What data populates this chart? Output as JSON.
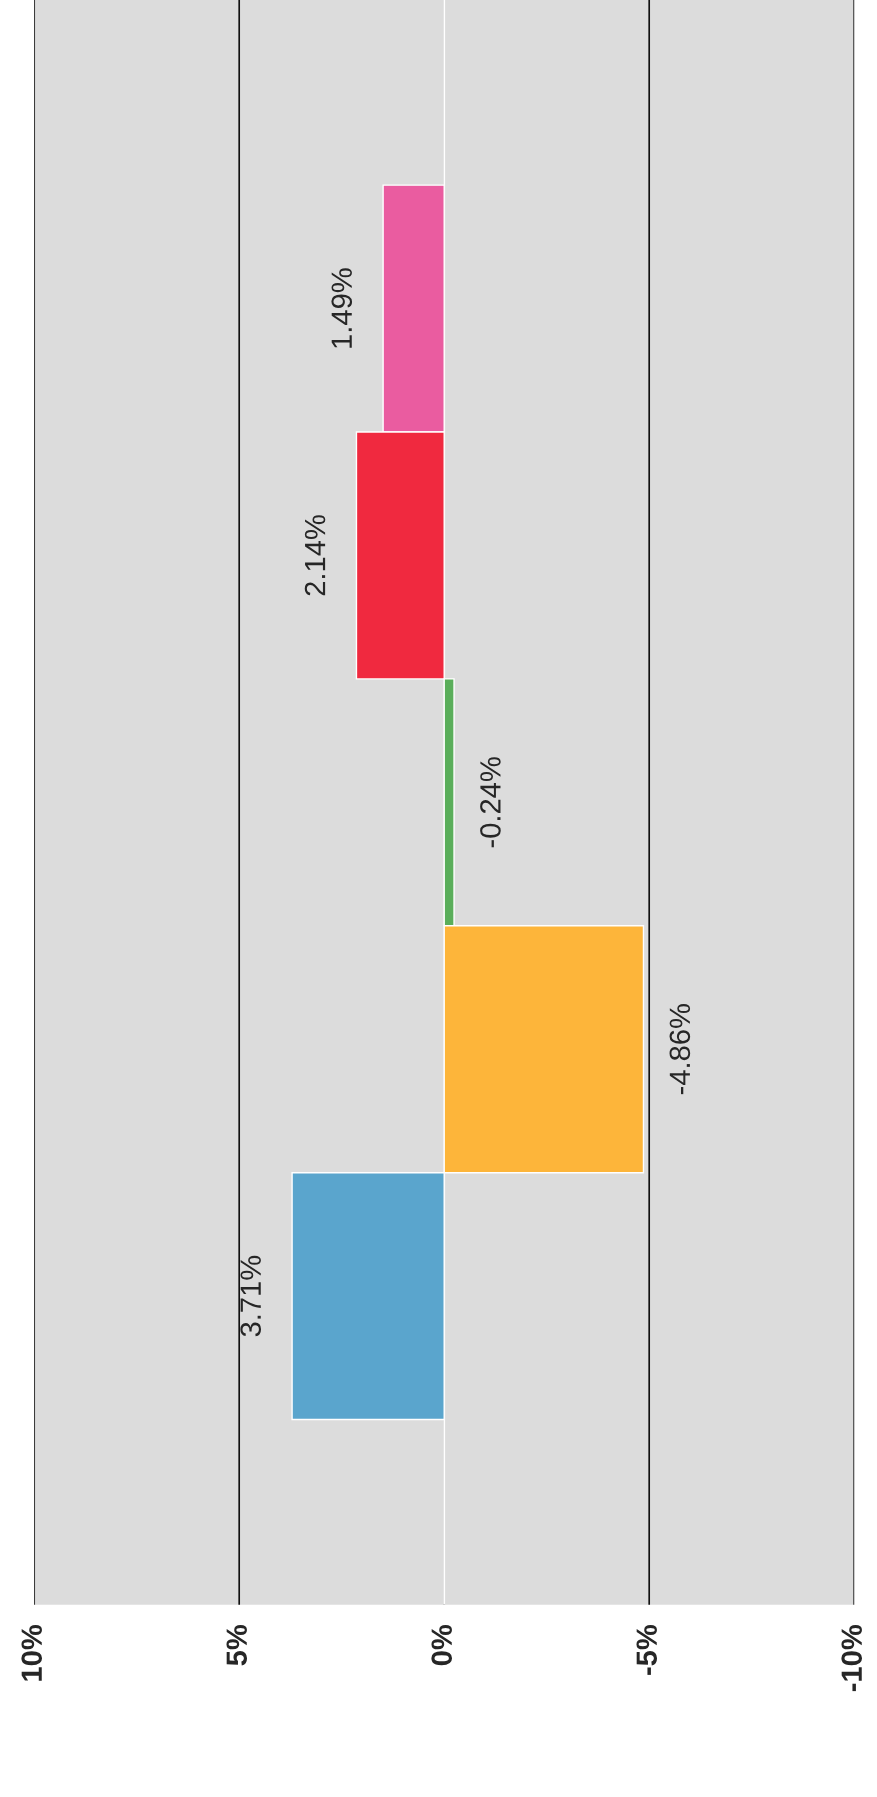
{
  "chart_data": {
    "type": "bar",
    "orientation": "horizontal",
    "categories": [
      null,
      null,
      null,
      null,
      null
    ],
    "values": [
      1.49,
      2.14,
      -0.24,
      -4.86,
      3.71
    ],
    "colors": [
      "#ea5ca0",
      "#f0293f",
      "#5aae5a",
      "#fdb53a",
      "#5aa5cd"
    ],
    "value_labels": [
      "1.49%",
      "2.14%",
      "-0.24%",
      "-4.86%",
      "3.71%"
    ],
    "xlim": [
      10,
      -10
    ],
    "xticks": [
      {
        "value": 10,
        "label": "10%"
      },
      {
        "value": 5,
        "label": "5%"
      },
      {
        "value": 0,
        "label": "0%"
      },
      {
        "value": -5,
        "label": "-5%"
      },
      {
        "value": -10,
        "label": "-10%"
      }
    ],
    "grid": "x",
    "ref_lines": [
      {
        "axis": "x",
        "value": 0,
        "color": "#ffffff"
      }
    ]
  }
}
